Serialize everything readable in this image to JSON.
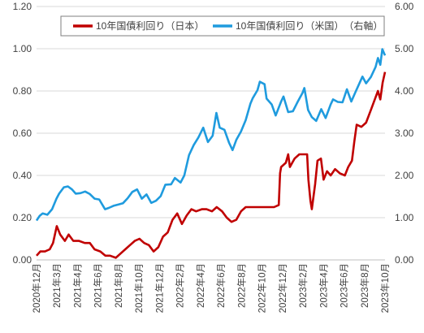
{
  "chart_data": {
    "type": "line",
    "legend_position": "top-right",
    "grid": true,
    "y_left": {
      "ticks": [
        "0.00",
        "0.20",
        "0.40",
        "0.60",
        "0.80",
        "1.00",
        "1.20"
      ],
      "range": [
        0,
        1.2
      ]
    },
    "y_right": {
      "ticks": [
        "0.00",
        "1.00",
        "2.00",
        "3.00",
        "4.00",
        "5.00",
        "6.00"
      ],
      "range": [
        0,
        6
      ]
    },
    "x_labels": [
      "2020年12月",
      "2021年3月",
      "2021年4月",
      "2021年6月",
      "2021年8月",
      "2021年10月",
      "2021年12月",
      "2022年2月",
      "2022年4月",
      "2022年6月",
      "2022年8月",
      "2022年10月",
      "2022年12月",
      "2023年2月",
      "2023年4月",
      "2023年6月",
      "2023年8月",
      "2023年10月"
    ],
    "x_range": [
      "2020-12-28",
      "2023-10-27"
    ],
    "series": [
      {
        "name": "10年国債利回り（日本）",
        "axis": "left",
        "color": "#c00000",
        "points": [
          [
            "2020-12-28",
            0.02
          ],
          [
            "2021-01-08",
            0.04
          ],
          [
            "2021-01-22",
            0.04
          ],
          [
            "2021-02-05",
            0.05
          ],
          [
            "2021-02-15",
            0.08
          ],
          [
            "2021-02-26",
            0.16
          ],
          [
            "2021-03-08",
            0.12
          ],
          [
            "2021-03-22",
            0.09
          ],
          [
            "2021-04-02",
            0.12
          ],
          [
            "2021-04-16",
            0.09
          ],
          [
            "2021-05-03",
            0.09
          ],
          [
            "2021-05-20",
            0.08
          ],
          [
            "2021-06-04",
            0.08
          ],
          [
            "2021-06-18",
            0.05
          ],
          [
            "2021-07-05",
            0.04
          ],
          [
            "2021-07-20",
            0.02
          ],
          [
            "2021-08-03",
            0.02
          ],
          [
            "2021-08-20",
            0.01
          ],
          [
            "2021-09-03",
            0.03
          ],
          [
            "2021-09-17",
            0.05
          ],
          [
            "2021-10-01",
            0.07
          ],
          [
            "2021-10-15",
            0.09
          ],
          [
            "2021-10-29",
            0.1
          ],
          [
            "2021-11-12",
            0.08
          ],
          [
            "2021-11-26",
            0.07
          ],
          [
            "2021-12-10",
            0.04
          ],
          [
            "2021-12-24",
            0.06
          ],
          [
            "2022-01-07",
            0.11
          ],
          [
            "2022-01-21",
            0.13
          ],
          [
            "2022-02-04",
            0.19
          ],
          [
            "2022-02-18",
            0.22
          ],
          [
            "2022-03-04",
            0.17
          ],
          [
            "2022-03-18",
            0.21
          ],
          [
            "2022-04-01",
            0.24
          ],
          [
            "2022-04-15",
            0.23
          ],
          [
            "2022-05-02",
            0.24
          ],
          [
            "2022-05-16",
            0.24
          ],
          [
            "2022-06-01",
            0.23
          ],
          [
            "2022-06-15",
            0.25
          ],
          [
            "2022-07-01",
            0.23
          ],
          [
            "2022-07-15",
            0.2
          ],
          [
            "2022-07-29",
            0.18
          ],
          [
            "2022-08-12",
            0.19
          ],
          [
            "2022-08-26",
            0.23
          ],
          [
            "2022-09-09",
            0.25
          ],
          [
            "2022-09-23",
            0.25
          ],
          [
            "2022-10-07",
            0.25
          ],
          [
            "2022-10-21",
            0.25
          ],
          [
            "2022-11-04",
            0.25
          ],
          [
            "2022-11-18",
            0.25
          ],
          [
            "2022-12-02",
            0.25
          ],
          [
            "2022-12-16",
            0.26
          ],
          [
            "2022-12-20",
            0.41
          ],
          [
            "2022-12-23",
            0.44
          ],
          [
            "2023-01-06",
            0.46
          ],
          [
            "2023-01-13",
            0.5
          ],
          [
            "2023-01-18",
            0.44
          ],
          [
            "2023-01-25",
            0.46
          ],
          [
            "2023-02-01",
            0.48
          ],
          [
            "2023-02-15",
            0.5
          ],
          [
            "2023-03-01",
            0.5
          ],
          [
            "2023-03-10",
            0.5
          ],
          [
            "2023-03-14",
            0.38
          ],
          [
            "2023-03-20",
            0.28
          ],
          [
            "2023-03-24",
            0.24
          ],
          [
            "2023-04-03",
            0.36
          ],
          [
            "2023-04-10",
            0.47
          ],
          [
            "2023-04-20",
            0.48
          ],
          [
            "2023-04-28",
            0.38
          ],
          [
            "2023-05-08",
            0.42
          ],
          [
            "2023-05-19",
            0.4
          ],
          [
            "2023-06-01",
            0.43
          ],
          [
            "2023-06-15",
            0.41
          ],
          [
            "2023-06-30",
            0.4
          ],
          [
            "2023-07-10",
            0.44
          ],
          [
            "2023-07-21",
            0.47
          ],
          [
            "2023-07-28",
            0.56
          ],
          [
            "2023-08-04",
            0.64
          ],
          [
            "2023-08-18",
            0.63
          ],
          [
            "2023-09-01",
            0.65
          ],
          [
            "2023-09-15",
            0.71
          ],
          [
            "2023-09-29",
            0.77
          ],
          [
            "2023-10-06",
            0.8
          ],
          [
            "2023-10-13",
            0.76
          ],
          [
            "2023-10-20",
            0.84
          ],
          [
            "2023-10-27",
            0.89
          ]
        ]
      },
      {
        "name": "10年国債利回り（米国）　（右軸）",
        "axis": "right",
        "color": "#1f9bde",
        "points": [
          [
            "2020-12-28",
            0.93
          ],
          [
            "2021-01-06",
            1.04
          ],
          [
            "2021-01-15",
            1.1
          ],
          [
            "2021-01-29",
            1.07
          ],
          [
            "2021-02-12",
            1.2
          ],
          [
            "2021-02-25",
            1.45
          ],
          [
            "2021-03-05",
            1.57
          ],
          [
            "2021-03-19",
            1.72
          ],
          [
            "2021-03-31",
            1.74
          ],
          [
            "2021-04-12",
            1.67
          ],
          [
            "2021-04-23",
            1.57
          ],
          [
            "2021-05-07",
            1.58
          ],
          [
            "2021-05-21",
            1.62
          ],
          [
            "2021-06-04",
            1.56
          ],
          [
            "2021-06-18",
            1.45
          ],
          [
            "2021-07-02",
            1.43
          ],
          [
            "2021-07-19",
            1.2
          ],
          [
            "2021-07-30",
            1.23
          ],
          [
            "2021-08-13",
            1.28
          ],
          [
            "2021-08-27",
            1.31
          ],
          [
            "2021-09-10",
            1.34
          ],
          [
            "2021-09-24",
            1.46
          ],
          [
            "2021-10-08",
            1.61
          ],
          [
            "2021-10-22",
            1.67
          ],
          [
            "2021-11-05",
            1.45
          ],
          [
            "2021-11-19",
            1.55
          ],
          [
            "2021-12-03",
            1.35
          ],
          [
            "2021-12-17",
            1.4
          ],
          [
            "2021-12-31",
            1.51
          ],
          [
            "2022-01-14",
            1.78
          ],
          [
            "2022-01-31",
            1.79
          ],
          [
            "2022-02-11",
            1.94
          ],
          [
            "2022-02-28",
            1.83
          ],
          [
            "2022-03-11",
            2.0
          ],
          [
            "2022-03-25",
            2.48
          ],
          [
            "2022-04-08",
            2.72
          ],
          [
            "2022-04-22",
            2.9
          ],
          [
            "2022-05-06",
            3.13
          ],
          [
            "2022-05-20",
            2.79
          ],
          [
            "2022-06-03",
            2.94
          ],
          [
            "2022-06-14",
            3.48
          ],
          [
            "2022-06-24",
            3.13
          ],
          [
            "2022-07-08",
            3.08
          ],
          [
            "2022-07-22",
            2.77
          ],
          [
            "2022-08-01",
            2.6
          ],
          [
            "2022-08-12",
            2.84
          ],
          [
            "2022-08-26",
            3.04
          ],
          [
            "2022-09-09",
            3.31
          ],
          [
            "2022-09-23",
            3.7
          ],
          [
            "2022-09-30",
            3.83
          ],
          [
            "2022-10-14",
            4.02
          ],
          [
            "2022-10-21",
            4.22
          ],
          [
            "2022-11-04",
            4.16
          ],
          [
            "2022-11-10",
            3.82
          ],
          [
            "2022-11-25",
            3.68
          ],
          [
            "2022-12-07",
            3.42
          ],
          [
            "2022-12-23",
            3.75
          ],
          [
            "2022-12-30",
            3.87
          ],
          [
            "2023-01-13",
            3.5
          ],
          [
            "2023-01-27",
            3.52
          ],
          [
            "2023-02-10",
            3.74
          ],
          [
            "2023-02-24",
            3.95
          ],
          [
            "2023-03-02",
            4.07
          ],
          [
            "2023-03-13",
            3.55
          ],
          [
            "2023-03-24",
            3.38
          ],
          [
            "2023-04-06",
            3.29
          ],
          [
            "2023-04-21",
            3.57
          ],
          [
            "2023-05-04",
            3.36
          ],
          [
            "2023-05-19",
            3.68
          ],
          [
            "2023-05-26",
            3.8
          ],
          [
            "2023-06-09",
            3.74
          ],
          [
            "2023-06-23",
            3.73
          ],
          [
            "2023-07-06",
            4.04
          ],
          [
            "2023-07-19",
            3.75
          ],
          [
            "2023-07-31",
            3.97
          ],
          [
            "2023-08-11",
            4.16
          ],
          [
            "2023-08-21",
            4.34
          ],
          [
            "2023-09-01",
            4.18
          ],
          [
            "2023-09-15",
            4.33
          ],
          [
            "2023-09-29",
            4.57
          ],
          [
            "2023-10-06",
            4.78
          ],
          [
            "2023-10-13",
            4.62
          ],
          [
            "2023-10-19",
            4.99
          ],
          [
            "2023-10-27",
            4.84
          ]
        ]
      }
    ]
  }
}
